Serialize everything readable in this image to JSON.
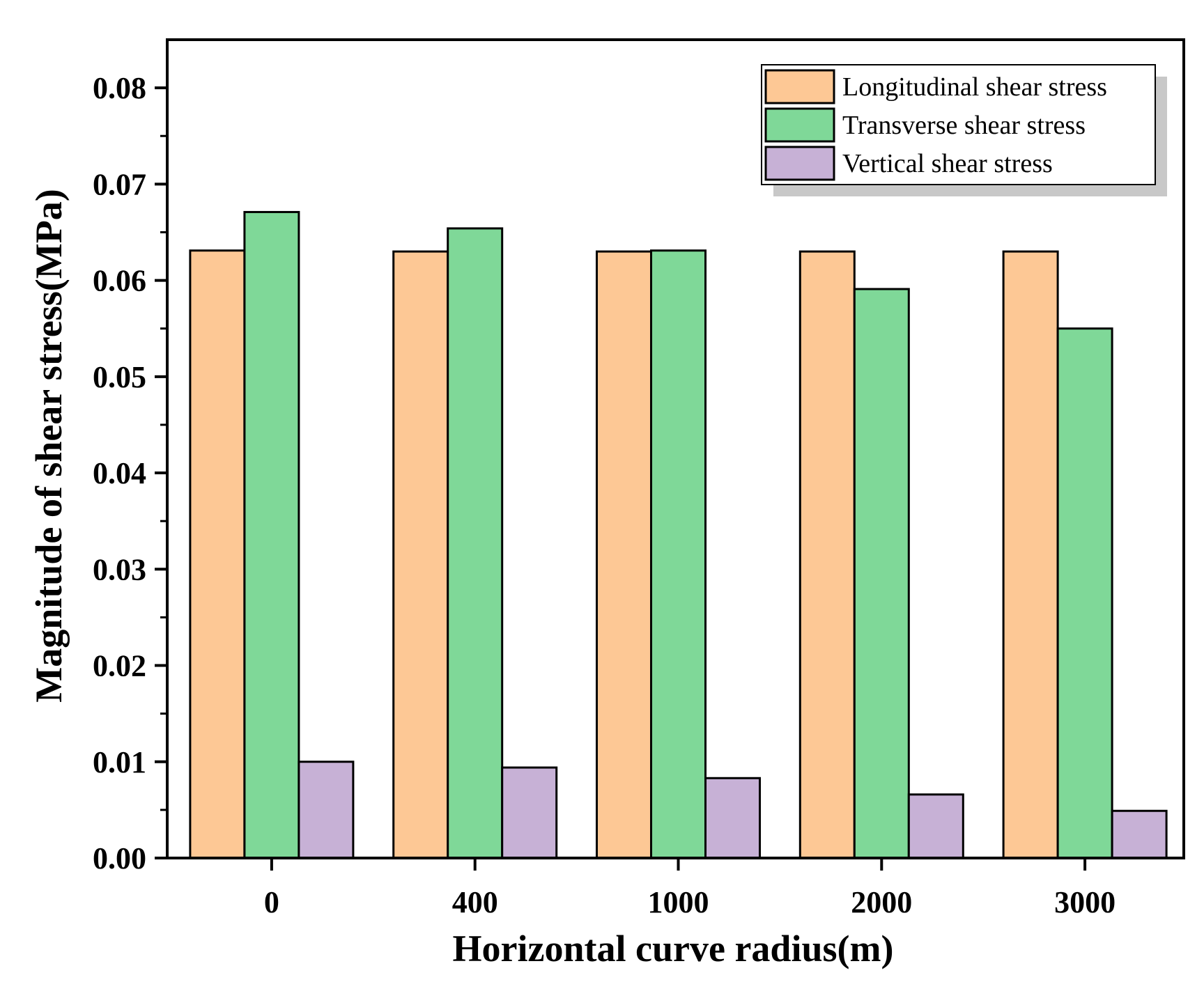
{
  "chart_data": {
    "type": "bar",
    "title": "",
    "xlabel": "Horizontal curve radius(m)",
    "ylabel": "Magnitude of shear stress(MPa)",
    "categories": [
      "0",
      "400",
      "1000",
      "2000",
      "3000"
    ],
    "ylim": [
      0,
      0.085
    ],
    "yticks": [
      "0.00",
      "0.01",
      "0.02",
      "0.03",
      "0.04",
      "0.05",
      "0.06",
      "0.07",
      "0.08"
    ],
    "grid": false,
    "legend_position": "top-right",
    "series": [
      {
        "name": "Longitudinal shear stress",
        "color": "#FDC895",
        "values": [
          0.0631,
          0.063,
          0.063,
          0.063,
          0.063
        ]
      },
      {
        "name": "Transverse shear stress",
        "color": "#7FD898",
        "values": [
          0.0671,
          0.0654,
          0.0631,
          0.0591,
          0.055
        ]
      },
      {
        "name": "Vertical shear stress",
        "color": "#C7B1D6",
        "values": [
          0.01,
          0.0094,
          0.0083,
          0.0066,
          0.0049
        ]
      }
    ]
  }
}
